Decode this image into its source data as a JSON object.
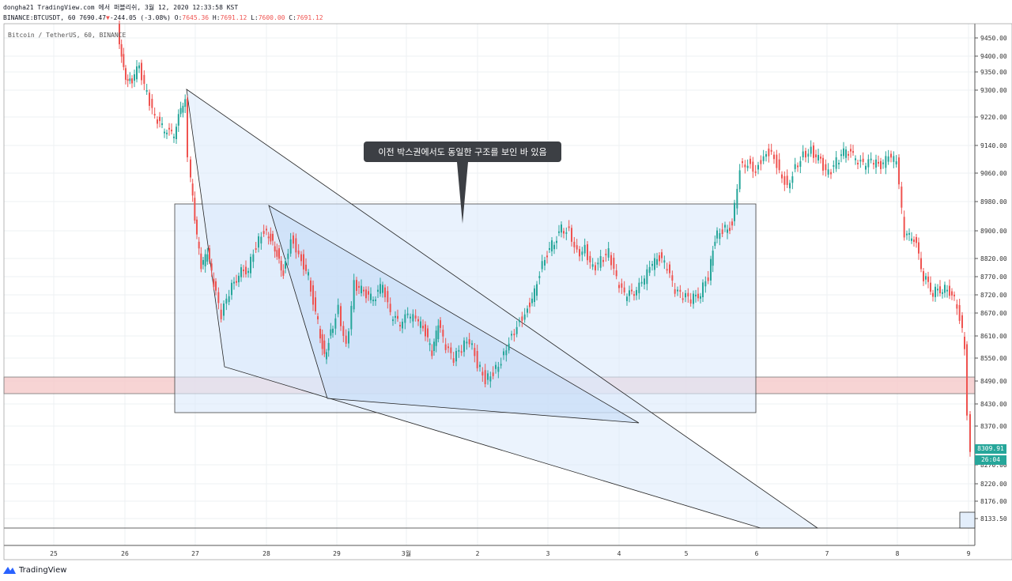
{
  "header": {
    "line1": "dongha21 TradingView.com 에서 퍼블리쉬, 3월 12, 2020 12:33:58 KST",
    "symbol": "BINANCE:BTCUSDT, 60 ",
    "last": "7690.47",
    "change_arrow": "▼",
    "change": "-244.05 (-3.08%)",
    "o_label": " O:",
    "o": "7645.36",
    "h_label": " H:",
    "h": "7691.12",
    "l_label": " L:",
    "l": "7600.00",
    "c_label": " C:",
    "c": "7691.12"
  },
  "legend": "Bitcoin / TetherUS, 60, BINANCE",
  "callout": "이전 박스권에서도 동일한 구조를 보인 바 있음",
  "price_axis": [
    "9450.00",
    "9400.00",
    "9350.00",
    "9300.00",
    "9220.00",
    "9140.00",
    "9060.00",
    "8980.00",
    "8900.00",
    "8820.00",
    "8770.00",
    "8720.00",
    "8670.00",
    "8610.00",
    "8550.00",
    "8490.00",
    "8430.00",
    "8370.00",
    "8270.00",
    "8220.00",
    "8176.00",
    "8133.50"
  ],
  "time_axis": [
    "25",
    "26",
    "27",
    "28",
    "29",
    "3월",
    "2",
    "3",
    "4",
    "5",
    "6",
    "7",
    "8",
    "9"
  ],
  "last_price_tag": "8309.91",
  "countdown_tag": "26:04",
  "brand": "TradingView",
  "colors": {
    "up": "#26a69a",
    "down": "#ef5350",
    "box_fill": "#dbe9fb",
    "red_zone": "#f5c4c4"
  }
}
